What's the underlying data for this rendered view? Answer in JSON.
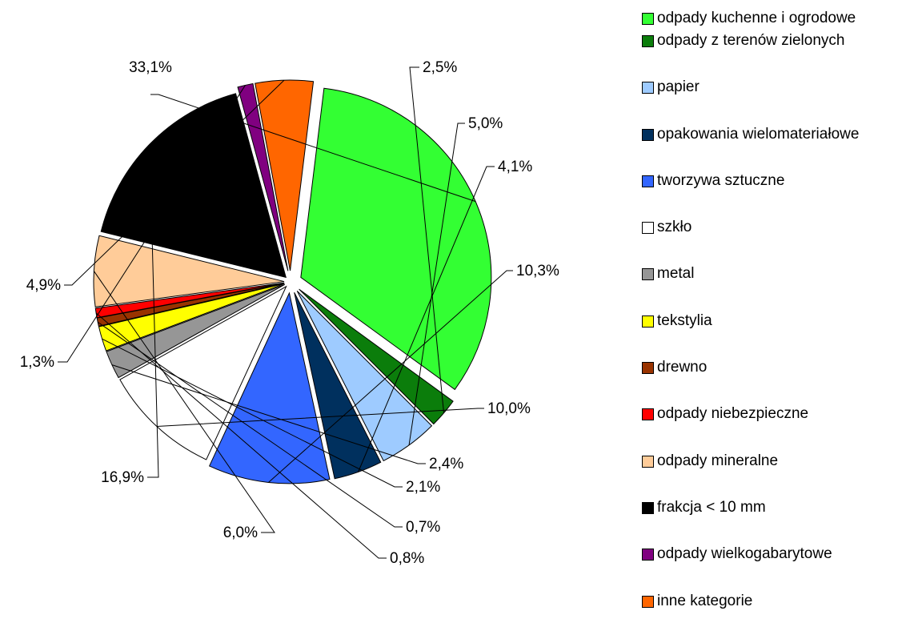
{
  "chart_data": {
    "type": "pie",
    "legend_position": "right",
    "slices": [
      {
        "label": "odpady kuchenne i ogrodowe",
        "value": 33.1,
        "value_label": "33,1%",
        "color": "#33ff33"
      },
      {
        "label": "odpady z terenów zielonych",
        "value": 2.5,
        "value_label": "2,5%",
        "color": "#0b7d0b"
      },
      {
        "label": "papier",
        "value": 5.0,
        "value_label": "5,0%",
        "color": "#9ecbff"
      },
      {
        "label": "opakowania wielomateriałowe",
        "value": 4.1,
        "value_label": "4,1%",
        "color": "#00305e"
      },
      {
        "label": "tworzywa sztuczne",
        "value": 10.3,
        "value_label": "10,3%",
        "color": "#3366ff"
      },
      {
        "label": "szkło",
        "value": 10.0,
        "value_label": "10,0%",
        "color": "#ffffff"
      },
      {
        "label": "metal",
        "value": 2.4,
        "value_label": "2,4%",
        "color": "#969696"
      },
      {
        "label": "tekstylia",
        "value": 2.1,
        "value_label": "2,1%",
        "color": "#ffff00"
      },
      {
        "label": "drewno",
        "value": 0.7,
        "value_label": "0,7%",
        "color": "#993300"
      },
      {
        "label": "odpady niebezpieczne",
        "value": 0.8,
        "value_label": "0,8%",
        "color": "#ff0000"
      },
      {
        "label": "odpady mineralne",
        "value": 6.0,
        "value_label": "6,0%",
        "color": "#ffcc99"
      },
      {
        "label": "frakcja < 10 mm",
        "value": 16.9,
        "value_label": "16,9%",
        "color": "#000000"
      },
      {
        "label": "odpady wielkogabarytowe",
        "value": 1.3,
        "value_label": "1,3%",
        "color": "#800080"
      },
      {
        "label": "inne kategorie",
        "value": 4.9,
        "value_label": "4,9%",
        "color": "#ff6600"
      }
    ]
  }
}
